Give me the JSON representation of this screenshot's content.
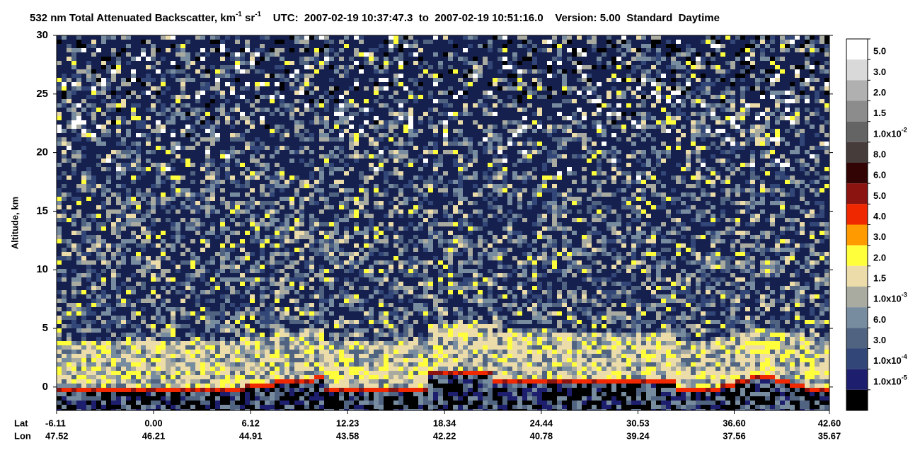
{
  "chart_data": {
    "type": "curtain",
    "title_parts": [
      {
        "text": "532 nm Total Attenuated Backscatter, km"
      },
      {
        "sup": "-1"
      },
      {
        "text": " sr"
      },
      {
        "sup": "-1"
      },
      {
        "text": "    UTC:  2007-02-19 10:37:47.3  to  2007-02-19 10:51:16.0    Version: 5.00  Standard  Daytime"
      }
    ],
    "y_label": "Altitude, km",
    "ylim": [
      -2,
      30
    ],
    "yticks": [
      0,
      5,
      10,
      15,
      20,
      25,
      30
    ],
    "x_row_labels": [
      "Lat",
      "Lon"
    ],
    "xlim": [
      -6.11,
      42.6
    ],
    "xticks": [
      {
        "value": -6.11,
        "label": "-6.11"
      },
      {
        "value": 0.0,
        "label": "0.00"
      },
      {
        "value": 6.12,
        "label": "6.12"
      },
      {
        "value": 12.23,
        "label": "12.23"
      },
      {
        "value": 18.34,
        "label": "18.34"
      },
      {
        "value": 24.44,
        "label": "24.44"
      },
      {
        "value": 30.53,
        "label": "30.53"
      },
      {
        "value": 36.6,
        "label": "36.60"
      },
      {
        "value": 42.6,
        "label": "42.60"
      }
    ],
    "lon_labels": [
      "47.52",
      "46.21",
      "44.91",
      "43.58",
      "42.22",
      "40.78",
      "39.24",
      "37.56",
      "35.67"
    ],
    "colorscale": [
      {
        "color": "#ffffff",
        "label": "5.0"
      },
      {
        "color": "#d9d9d9",
        "label": "3.0"
      },
      {
        "color": "#b0b0b0",
        "label": "2.0"
      },
      {
        "color": "#8c8c8c",
        "label": "1.5"
      },
      {
        "color": "#646464",
        "label": "1.0x10",
        "exp": "-2"
      },
      {
        "color": "#463c3a",
        "label": "8.0"
      },
      {
        "color": "#320404",
        "label": "6.0"
      },
      {
        "color": "#8c1410",
        "label": "5.0"
      },
      {
        "color": "#f02800",
        "label": "4.0"
      },
      {
        "color": "#ff9a00",
        "label": "3.0"
      },
      {
        "color": "#ffff3c",
        "label": "2.0"
      },
      {
        "color": "#ebdcaa",
        "label": "1.5"
      },
      {
        "color": "#a9aaa0",
        "label": "1.0x10",
        "exp": "-3"
      },
      {
        "color": "#788ca0",
        "label": "6.0"
      },
      {
        "color": "#506482",
        "label": "3.0"
      },
      {
        "color": "#324678",
        "label": "1.0x10",
        "exp": "-4"
      },
      {
        "color": "#1e1e6e",
        "label": "1.0x10",
        "exp": "-5"
      },
      {
        "color": "#000000"
      }
    ]
  }
}
